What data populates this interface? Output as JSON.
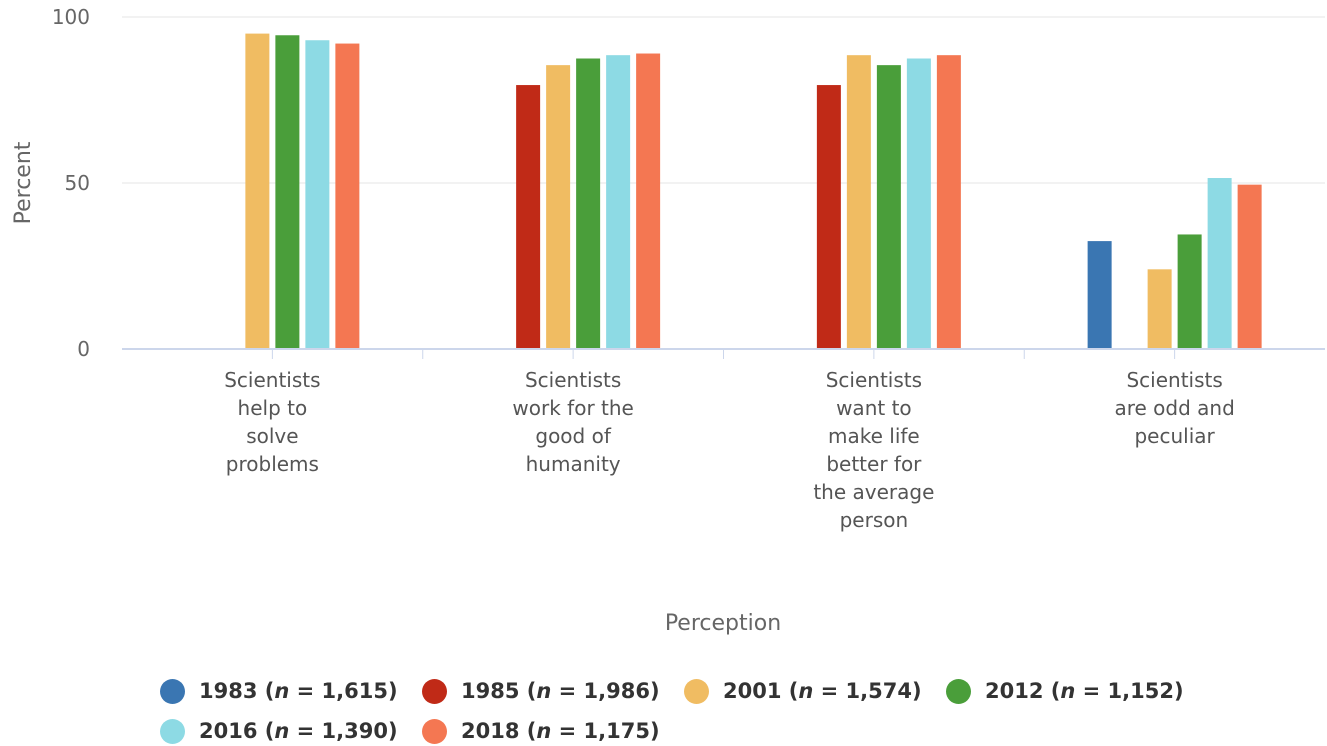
{
  "chart_data": {
    "type": "bar",
    "xlabel": "Perception",
    "ylabel": "Percent",
    "ylim": [
      0,
      100
    ],
    "yticks": [
      0,
      50,
      100
    ],
    "grid": true,
    "legend_position": "bottom",
    "categories": [
      [
        "Scientists",
        "help to",
        "solve",
        "problems"
      ],
      [
        "Scientists",
        "work for the",
        "good of",
        "humanity"
      ],
      [
        "Scientists",
        "want to",
        "make life",
        "better for",
        "the average",
        "person"
      ],
      [
        "Scientists",
        "are odd and",
        "peculiar"
      ]
    ],
    "series": [
      {
        "name": "1983",
        "n": "1,615",
        "color": "#3a76b2",
        "values": [
          null,
          null,
          null,
          32.5
        ]
      },
      {
        "name": "1985",
        "n": "1,986",
        "color": "#c02a17",
        "values": [
          null,
          79.5,
          79.5,
          null
        ]
      },
      {
        "name": "2001",
        "n": "1,574",
        "color": "#f0bc62",
        "values": [
          95.0,
          85.5,
          88.5,
          24.0
        ]
      },
      {
        "name": "2012",
        "n": "1,152",
        "color": "#4a9e3a",
        "values": [
          94.5,
          87.5,
          85.5,
          34.5
        ]
      },
      {
        "name": "2016",
        "n": "1,390",
        "color": "#8ddae4",
        "values": [
          93.0,
          88.5,
          87.5,
          51.5
        ]
      },
      {
        "name": "2018",
        "n": "1,175",
        "color": "#f47752",
        "values": [
          92.0,
          89.0,
          88.5,
          49.5
        ]
      }
    ]
  }
}
